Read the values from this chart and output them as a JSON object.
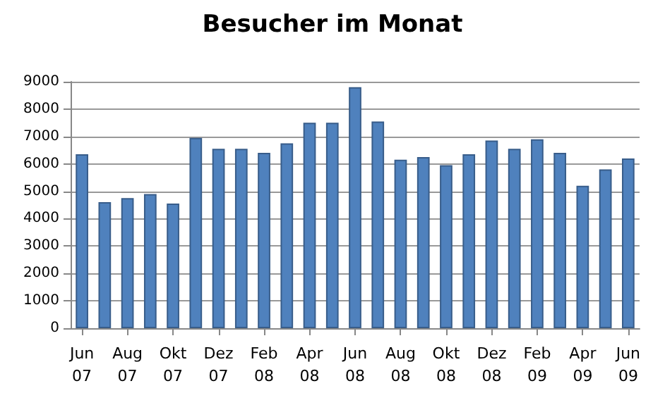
{
  "chart_data": {
    "type": "bar",
    "title": "Besucher im Monat",
    "categories": [
      "Jun 07",
      null,
      "Aug 07",
      null,
      "Okt 07",
      null,
      "Dez 07",
      null,
      "Feb 08",
      null,
      "Apr 08",
      null,
      "Jun 08",
      null,
      "Aug 08",
      null,
      "Okt 08",
      null,
      "Dez 08",
      null,
      "Feb 09",
      null,
      "Apr 09",
      null,
      "Jun 09"
    ],
    "values": [
      6350,
      4600,
      4750,
      4900,
      4550,
      6950,
      6550,
      6550,
      6400,
      6750,
      7500,
      7500,
      8800,
      7550,
      6150,
      6250,
      5950,
      6350,
      6850,
      6550,
      6900,
      6400,
      5200,
      5800,
      6200
    ],
    "color": "#4f81bd",
    "ylim": [
      0,
      9000
    ],
    "yticks": [
      0,
      1000,
      2000,
      3000,
      4000,
      5000,
      6000,
      7000,
      8000,
      9000
    ],
    "grid": "y"
  }
}
